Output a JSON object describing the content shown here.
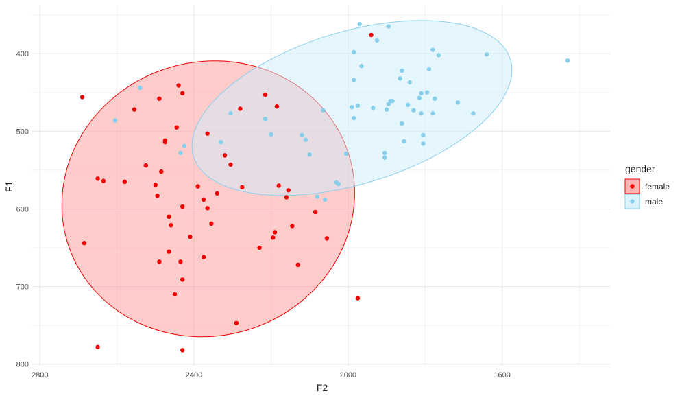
{
  "chart_data": {
    "type": "scatter",
    "title": "",
    "xlabel": "F2",
    "ylabel": "F1",
    "x_reversed": true,
    "y_reversed": true,
    "xlim": [
      2820,
      1320
    ],
    "ylim": [
      338,
      802
    ],
    "xticks": [
      2800,
      2400,
      2000,
      1600
    ],
    "yticks": [
      400,
      500,
      600,
      700,
      800
    ],
    "grid": true,
    "legend": {
      "title": "gender",
      "position": "right"
    },
    "series": [
      {
        "name": "female",
        "color": "#ee0000",
        "fill": "#ff9999",
        "ellipse": {
          "center": [
            2363,
            587
          ],
          "radius_x": 355,
          "radius_y": 190,
          "angle_deg": 72
        },
        "points": [
          [
            2690,
            456
          ],
          [
            2555,
            472
          ],
          [
            2490,
            458
          ],
          [
            2440,
            441
          ],
          [
            2430,
            451
          ],
          [
            2650,
            561
          ],
          [
            2635,
            564
          ],
          [
            2580,
            565
          ],
          [
            2525,
            544
          ],
          [
            2485,
            552
          ],
          [
            2475,
            512
          ],
          [
            2475,
            514
          ],
          [
            2445,
            495
          ],
          [
            2500,
            569
          ],
          [
            2495,
            583
          ],
          [
            2430,
            597
          ],
          [
            2465,
            610
          ],
          [
            2460,
            621
          ],
          [
            2410,
            636
          ],
          [
            2685,
            644
          ],
          [
            2465,
            655
          ],
          [
            2490,
            668
          ],
          [
            2435,
            668
          ],
          [
            2430,
            691
          ],
          [
            2450,
            710
          ],
          [
            2390,
            571
          ],
          [
            2375,
            588
          ],
          [
            2365,
            599
          ],
          [
            2355,
            619
          ],
          [
            2340,
            580
          ],
          [
            2305,
            543
          ],
          [
            2320,
            531
          ],
          [
            2365,
            503
          ],
          [
            2275,
            572
          ],
          [
            2280,
            471
          ],
          [
            2215,
            453
          ],
          [
            2185,
            468
          ],
          [
            2180,
            570
          ],
          [
            2155,
            576
          ],
          [
            2160,
            585
          ],
          [
            2190,
            630
          ],
          [
            2195,
            637
          ],
          [
            2145,
            622
          ],
          [
            2230,
            650
          ],
          [
            2375,
            662
          ],
          [
            2130,
            672
          ],
          [
            2085,
            604
          ],
          [
            2055,
            638
          ],
          [
            2290,
            747
          ],
          [
            2650,
            778
          ],
          [
            2430,
            782
          ],
          [
            1975,
            715
          ],
          [
            1940,
            376
          ]
        ]
      },
      {
        "name": "male",
        "color": "#87ceeb",
        "fill": "#cdeefb",
        "ellipse": {
          "center": [
            1990,
            470
          ],
          "radius_x": 430,
          "radius_y": 98,
          "angle_deg": -17
        },
        "points": [
          [
            1970,
            362
          ],
          [
            1895,
            365
          ],
          [
            1925,
            383
          ],
          [
            1985,
            398
          ],
          [
            1965,
            416
          ],
          [
            1985,
            434
          ],
          [
            1780,
            395
          ],
          [
            1765,
            402
          ],
          [
            1790,
            420
          ],
          [
            1860,
            422
          ],
          [
            1865,
            432
          ],
          [
            1840,
            437
          ],
          [
            1810,
            451
          ],
          [
            1815,
            457
          ],
          [
            1795,
            450
          ],
          [
            1775,
            458
          ],
          [
            1890,
            461
          ],
          [
            1885,
            461
          ],
          [
            1895,
            465
          ],
          [
            1845,
            466
          ],
          [
            1830,
            473
          ],
          [
            1810,
            477
          ],
          [
            1780,
            477
          ],
          [
            1900,
            472
          ],
          [
            1935,
            470
          ],
          [
            1860,
            490
          ],
          [
            1805,
            505
          ],
          [
            1805,
            516
          ],
          [
            1855,
            513
          ],
          [
            1990,
            469
          ],
          [
            1975,
            467
          ],
          [
            1985,
            483
          ],
          [
            1715,
            463
          ],
          [
            1675,
            477
          ],
          [
            2065,
            473
          ],
          [
            1905,
            528
          ],
          [
            1905,
            534
          ],
          [
            2005,
            529
          ],
          [
            1640,
            401
          ],
          [
            1430,
            409
          ],
          [
            2025,
            568
          ],
          [
            2030,
            566
          ],
          [
            2060,
            588
          ],
          [
            2080,
            584
          ],
          [
            2110,
            511
          ],
          [
            2120,
            505
          ],
          [
            2100,
            530
          ],
          [
            2200,
            504
          ],
          [
            2215,
            484
          ],
          [
            2305,
            477
          ],
          [
            2330,
            514
          ],
          [
            2425,
            519
          ],
          [
            2435,
            528
          ],
          [
            2605,
            486
          ],
          [
            2540,
            444
          ]
        ]
      }
    ]
  }
}
